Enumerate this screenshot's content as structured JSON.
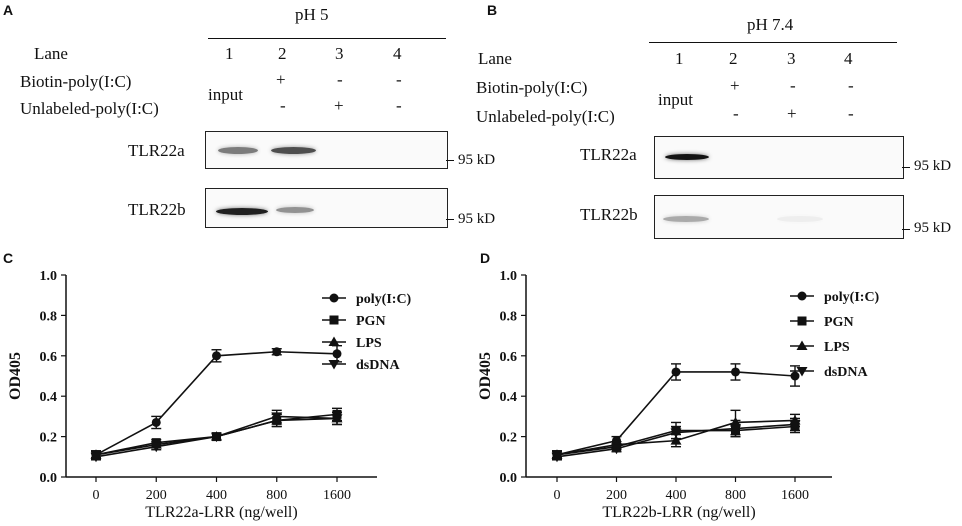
{
  "panels": {
    "A": {
      "letter": "A",
      "condition": "pH 5",
      "lane_label": "Lane",
      "lanes": [
        "1",
        "2",
        "3",
        "4"
      ],
      "biotin_label": "Biotin-poly(I:C)",
      "unlabeled_label": "Unlabeled-poly(I:C)",
      "biotin_row": [
        "input",
        "+",
        "-",
        "-"
      ],
      "unlabeled_row": [
        "-",
        "+",
        "-"
      ],
      "blots": [
        {
          "name": "TLR22a",
          "marker": "95 kD",
          "band_intensity": [
            0.55,
            0.75,
            0.0,
            0.0
          ]
        },
        {
          "name": "TLR22b",
          "marker": "95 kD",
          "band_intensity": [
            0.95,
            0.45,
            0.0,
            0.0
          ]
        }
      ]
    },
    "B": {
      "letter": "B",
      "condition": "pH 7.4",
      "lane_label": "Lane",
      "lanes": [
        "1",
        "2",
        "3",
        "4"
      ],
      "biotin_label": "Biotin-poly(I:C)",
      "unlabeled_label": "Unlabeled-poly(I:C)",
      "biotin_row": [
        "input",
        "+",
        "-",
        "-"
      ],
      "unlabeled_row": [
        "-",
        "+",
        "-"
      ],
      "blots": [
        {
          "name": "TLR22a",
          "marker": "95 kD",
          "band_intensity": [
            1.0,
            0.0,
            0.0,
            0.0
          ]
        },
        {
          "name": "TLR22b",
          "marker": "95 kD",
          "band_intensity": [
            0.35,
            0.0,
            0.05,
            0.0
          ]
        }
      ]
    }
  },
  "chart_data": [
    {
      "panel": "C",
      "type": "line",
      "xlabel": "TLR22a-LRR (ng/well)",
      "ylabel": "OD405",
      "categories": [
        "0",
        "200",
        "400",
        "800",
        "1600"
      ],
      "yticks": [
        "0.0",
        "0.2",
        "0.4",
        "0.6",
        "0.8",
        "1.0"
      ],
      "ylim": [
        0,
        1.0
      ],
      "series": [
        {
          "name": "poly(I:C)",
          "marker": "circle",
          "values": [
            0.11,
            0.27,
            0.6,
            0.62,
            0.61
          ],
          "errors": [
            0.02,
            0.03,
            0.03,
            0.015,
            0.04
          ]
        },
        {
          "name": "PGN",
          "marker": "square",
          "values": [
            0.11,
            0.17,
            0.2,
            0.28,
            0.31
          ],
          "errors": [
            0.015,
            0.015,
            0.015,
            0.03,
            0.03
          ]
        },
        {
          "name": "LPS",
          "marker": "triangle-up",
          "values": [
            0.11,
            0.16,
            0.2,
            0.28,
            0.29
          ],
          "errors": [
            0.015,
            0.015,
            0.015,
            0.03,
            0.03
          ]
        },
        {
          "name": "dsDNA",
          "marker": "triangle-down",
          "values": [
            0.1,
            0.15,
            0.2,
            0.3,
            0.29
          ],
          "errors": [
            0.015,
            0.015,
            0.015,
            0.03,
            0.03
          ]
        }
      ]
    },
    {
      "panel": "D",
      "type": "line",
      "xlabel": "TLR22b-LRR (ng/well)",
      "ylabel": "OD405",
      "categories": [
        "0",
        "200",
        "400",
        "800",
        "1600"
      ],
      "yticks": [
        "0.0",
        "0.2",
        "0.4",
        "0.6",
        "0.8",
        "1.0"
      ],
      "ylim": [
        0,
        1.0
      ],
      "series": [
        {
          "name": "poly(I:C)",
          "marker": "circle",
          "values": [
            0.11,
            0.18,
            0.52,
            0.52,
            0.5
          ],
          "errors": [
            0.02,
            0.02,
            0.04,
            0.04,
            0.05
          ]
        },
        {
          "name": "PGN",
          "marker": "square",
          "values": [
            0.11,
            0.15,
            0.23,
            0.23,
            0.25
          ],
          "errors": [
            0.015,
            0.015,
            0.04,
            0.03,
            0.03
          ]
        },
        {
          "name": "LPS",
          "marker": "triangle-up",
          "values": [
            0.11,
            0.16,
            0.18,
            0.27,
            0.28
          ],
          "errors": [
            0.015,
            0.015,
            0.03,
            0.06,
            0.03
          ]
        },
        {
          "name": "dsDNA",
          "marker": "triangle-down",
          "values": [
            0.1,
            0.14,
            0.22,
            0.24,
            0.26
          ],
          "errors": [
            0.015,
            0.015,
            0.03,
            0.04,
            0.03
          ]
        }
      ]
    }
  ]
}
